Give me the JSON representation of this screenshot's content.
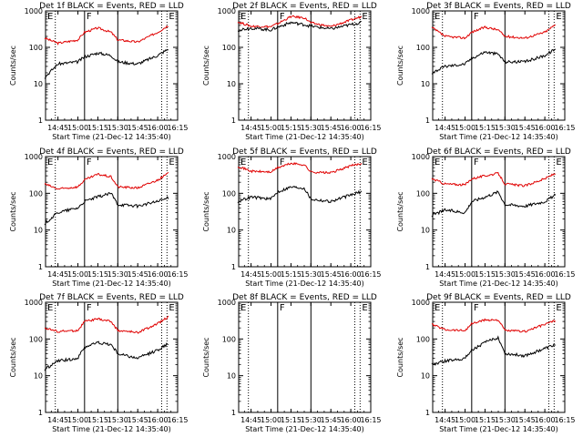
{
  "chart_data": {
    "type": "line",
    "common": {
      "ylabel": "Counts/sec",
      "xlabel": "Start Time (21-Dec-12 14:35:40)",
      "x_ticks": [
        "14:45",
        "15:00",
        "15:15",
        "15:30",
        "15:45",
        "16:00",
        "16:15"
      ],
      "y_ticks": [
        "1",
        "10",
        "100",
        "1000"
      ],
      "yscale": "log",
      "ylim": [
        1,
        1000
      ],
      "xlim": [
        "14:35:40",
        "16:15"
      ],
      "markers": [
        {
          "label": "E",
          "time": "14:35:40",
          "style": "dotted"
        },
        {
          "time": "14:43",
          "style": "dotted"
        },
        {
          "label": "F",
          "time": "15:05",
          "style": "solid"
        },
        {
          "time": "15:30",
          "style": "solid"
        },
        {
          "time": "16:03",
          "style": "dotted"
        },
        {
          "label": "E",
          "time": "16:07",
          "style": "dotted"
        }
      ],
      "series_colors": {
        "events": "#000000",
        "lld": "#e00000"
      }
    },
    "panels": [
      {
        "title": "Det 1f BLACK = Events, RED = LLD",
        "events": {
          "x": [
            "14:35",
            "14:45",
            "15:00",
            "15:05",
            "15:15",
            "15:25",
            "15:30",
            "15:45",
            "16:00",
            "16:08"
          ],
          "y": [
            15,
            35,
            40,
            55,
            70,
            60,
            40,
            35,
            60,
            90
          ]
        },
        "lld": {
          "x": [
            "14:35",
            "14:45",
            "15:00",
            "15:05",
            "15:15",
            "15:25",
            "15:30",
            "15:45",
            "16:00",
            "16:08"
          ],
          "y": [
            180,
            130,
            160,
            260,
            340,
            260,
            160,
            140,
            260,
            400
          ]
        }
      },
      {
        "title": "Det 2f BLACK = Events, RED = LLD",
        "events": {
          "x": [
            "14:35",
            "14:45",
            "15:00",
            "15:05",
            "15:15",
            "15:25",
            "15:30",
            "15:45",
            "16:00",
            "16:08"
          ],
          "y": [
            300,
            340,
            300,
            360,
            480,
            420,
            380,
            320,
            420,
            480
          ]
        },
        "lld": {
          "x": [
            "14:35",
            "14:45",
            "15:00",
            "15:05",
            "15:15",
            "15:25",
            "15:30",
            "15:45",
            "16:00",
            "16:08"
          ],
          "y": [
            500,
            380,
            370,
            450,
            700,
            650,
            470,
            370,
            560,
            700
          ]
        }
      },
      {
        "title": "Det 3f BLACK = Events, RED = LLD",
        "events": {
          "x": [
            "14:35",
            "14:45",
            "15:00",
            "15:05",
            "15:15",
            "15:25",
            "15:30",
            "15:45",
            "16:00",
            "16:08"
          ],
          "y": [
            20,
            30,
            35,
            50,
            75,
            65,
            40,
            40,
            60,
            90
          ]
        },
        "lld": {
          "x": [
            "14:35",
            "14:45",
            "15:00",
            "15:05",
            "15:15",
            "15:25",
            "15:30",
            "15:45",
            "16:00",
            "16:08"
          ],
          "y": [
            350,
            200,
            180,
            260,
            360,
            300,
            200,
            180,
            260,
            420
          ]
        }
      },
      {
        "title": "Det 4f BLACK = Events, RED = LLD",
        "events": {
          "x": [
            "14:35",
            "14:45",
            "15:00",
            "15:05",
            "15:15",
            "15:25",
            "15:30",
            "15:45",
            "16:00",
            "16:08"
          ],
          "y": [
            15,
            30,
            40,
            60,
            80,
            100,
            50,
            45,
            60,
            75
          ]
        },
        "lld": {
          "x": [
            "14:35",
            "14:45",
            "15:00",
            "15:05",
            "15:15",
            "15:25",
            "15:30",
            "15:45",
            "16:00",
            "16:08"
          ],
          "y": [
            180,
            130,
            150,
            230,
            330,
            280,
            150,
            140,
            230,
            350
          ]
        }
      },
      {
        "title": "Det 5f BLACK = Events, RED = LLD",
        "events": {
          "x": [
            "14:35",
            "14:45",
            "15:00",
            "15:05",
            "15:15",
            "15:25",
            "15:30",
            "15:45",
            "16:00",
            "16:08"
          ],
          "y": [
            60,
            80,
            70,
            110,
            150,
            140,
            70,
            60,
            90,
            110
          ]
        },
        "lld": {
          "x": [
            "14:35",
            "14:45",
            "15:00",
            "15:05",
            "15:15",
            "15:25",
            "15:30",
            "15:45",
            "16:00",
            "16:08"
          ],
          "y": [
            550,
            400,
            380,
            500,
            650,
            600,
            380,
            360,
            560,
            650
          ]
        }
      },
      {
        "title": "Det 6f BLACK = Events, RED = LLD",
        "events": {
          "x": [
            "14:35",
            "14:45",
            "15:00",
            "15:05",
            "15:15",
            "15:25",
            "15:30",
            "15:45",
            "16:00",
            "16:08"
          ],
          "y": [
            25,
            35,
            30,
            60,
            80,
            110,
            50,
            45,
            60,
            90
          ]
        },
        "lld": {
          "x": [
            "14:35",
            "14:45",
            "15:00",
            "15:05",
            "15:15",
            "15:25",
            "15:30",
            "15:45",
            "16:00",
            "16:08"
          ],
          "y": [
            250,
            180,
            170,
            250,
            300,
            350,
            180,
            160,
            250,
            350
          ]
        }
      },
      {
        "title": "Det 7f BLACK = Events, RED = LLD",
        "events": {
          "x": [
            "14:35",
            "14:45",
            "15:00",
            "15:05",
            "15:15",
            "15:25",
            "15:30",
            "15:45",
            "16:00",
            "16:08"
          ],
          "y": [
            15,
            25,
            30,
            60,
            80,
            70,
            40,
            30,
            50,
            75
          ]
        },
        "lld": {
          "x": [
            "14:35",
            "14:45",
            "15:00",
            "15:05",
            "15:15",
            "15:25",
            "15:30",
            "15:45",
            "16:00",
            "16:08"
          ],
          "y": [
            200,
            160,
            170,
            300,
            350,
            300,
            170,
            150,
            260,
            400
          ]
        }
      },
      {
        "title": "Det 8f BLACK = Events, RED = LLD",
        "events": {
          "x": [],
          "y": []
        },
        "lld": {
          "x": [],
          "y": []
        }
      },
      {
        "title": "Det 9f BLACK = Events, RED = LLD",
        "events": {
          "x": [
            "14:35",
            "14:45",
            "15:00",
            "15:05",
            "15:15",
            "15:25",
            "15:30",
            "15:45",
            "16:00",
            "16:08"
          ],
          "y": [
            20,
            25,
            30,
            50,
            80,
            110,
            40,
            35,
            55,
            70
          ]
        },
        "lld": {
          "x": [
            "14:35",
            "14:45",
            "15:00",
            "15:05",
            "15:15",
            "15:25",
            "15:30",
            "15:45",
            "16:00",
            "16:08"
          ],
          "y": [
            250,
            180,
            170,
            260,
            330,
            330,
            170,
            160,
            250,
            320
          ]
        }
      }
    ]
  }
}
